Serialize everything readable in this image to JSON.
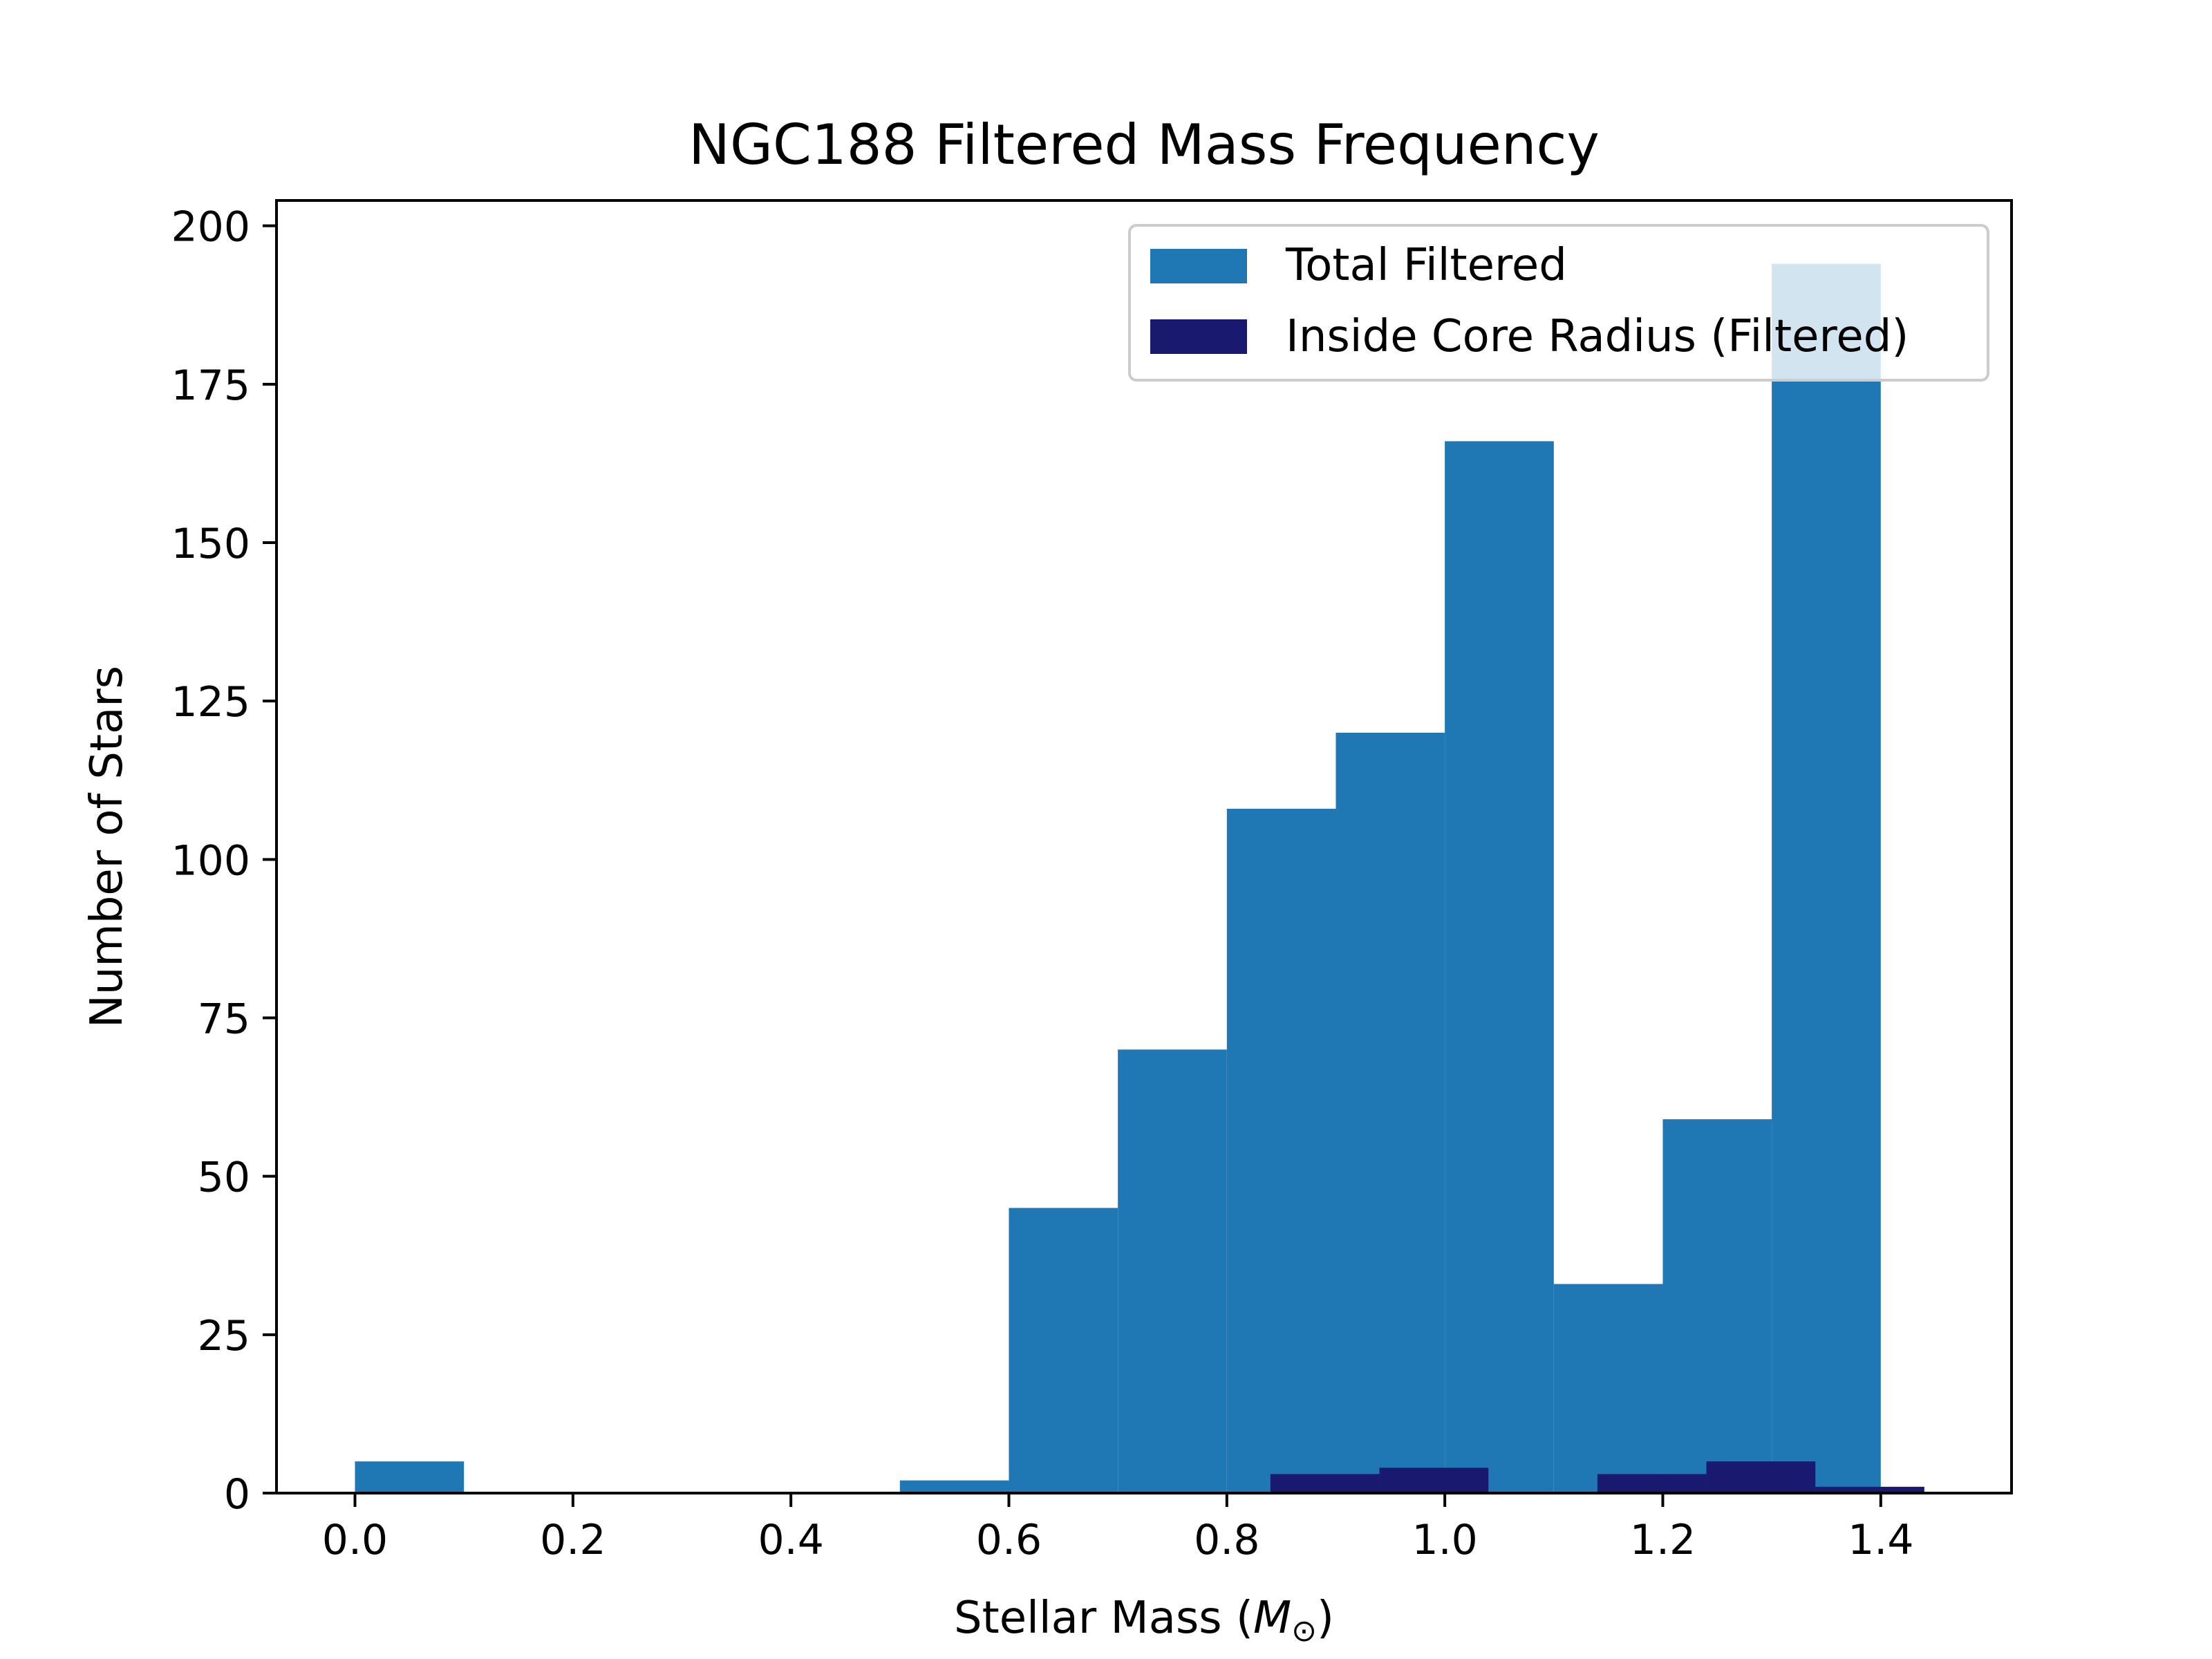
{
  "chart_data": {
    "type": "bar",
    "title": "NGC188 Filtered Mass Frequency",
    "xlabel_main": "Stellar Mass (",
    "xlabel_symbol": "M",
    "xlabel_sub": "⊙",
    "xlabel_close": ")",
    "ylabel": "Number of Stars",
    "xlim": [
      -0.072,
      1.52
    ],
    "ylim": [
      0,
      204
    ],
    "xticks": [
      "0.0",
      "0.2",
      "0.4",
      "0.6",
      "0.8",
      "1.0",
      "1.2",
      "1.4"
    ],
    "yticks": [
      "0",
      "25",
      "50",
      "75",
      "100",
      "125",
      "150",
      "175",
      "200"
    ],
    "grid": false,
    "legend_position": "top-right",
    "series": [
      {
        "name": "Total Filtered",
        "color": "#1f77b4",
        "bins": [
          {
            "x0": 0.0,
            "x1": 0.1,
            "count": 5
          },
          {
            "x0": 0.1,
            "x1": 0.2,
            "count": 0
          },
          {
            "x0": 0.2,
            "x1": 0.3,
            "count": 0
          },
          {
            "x0": 0.3,
            "x1": 0.4,
            "count": 0
          },
          {
            "x0": 0.4,
            "x1": 0.5,
            "count": 0
          },
          {
            "x0": 0.5,
            "x1": 0.6,
            "count": 2
          },
          {
            "x0": 0.6,
            "x1": 0.7,
            "count": 45
          },
          {
            "x0": 0.7,
            "x1": 0.8,
            "count": 70
          },
          {
            "x0": 0.8,
            "x1": 0.9,
            "count": 108
          },
          {
            "x0": 0.9,
            "x1": 1.0,
            "count": 120
          },
          {
            "x0": 1.0,
            "x1": 1.1,
            "count": 166
          },
          {
            "x0": 1.1,
            "x1": 1.2,
            "count": 33
          },
          {
            "x0": 1.2,
            "x1": 1.3,
            "count": 59
          },
          {
            "x0": 1.3,
            "x1": 1.4,
            "count": 194
          }
        ]
      },
      {
        "name": "Inside Core Radius (Filtered)",
        "color": "#191970",
        "bins": [
          {
            "x0": 0.84,
            "x1": 0.94,
            "count": 3
          },
          {
            "x0": 0.94,
            "x1": 1.04,
            "count": 4
          },
          {
            "x0": 1.04,
            "x1": 1.14,
            "count": 0
          },
          {
            "x0": 1.14,
            "x1": 1.24,
            "count": 3
          },
          {
            "x0": 1.24,
            "x1": 1.34,
            "count": 5
          },
          {
            "x0": 1.34,
            "x1": 1.44,
            "count": 1
          }
        ]
      }
    ]
  }
}
